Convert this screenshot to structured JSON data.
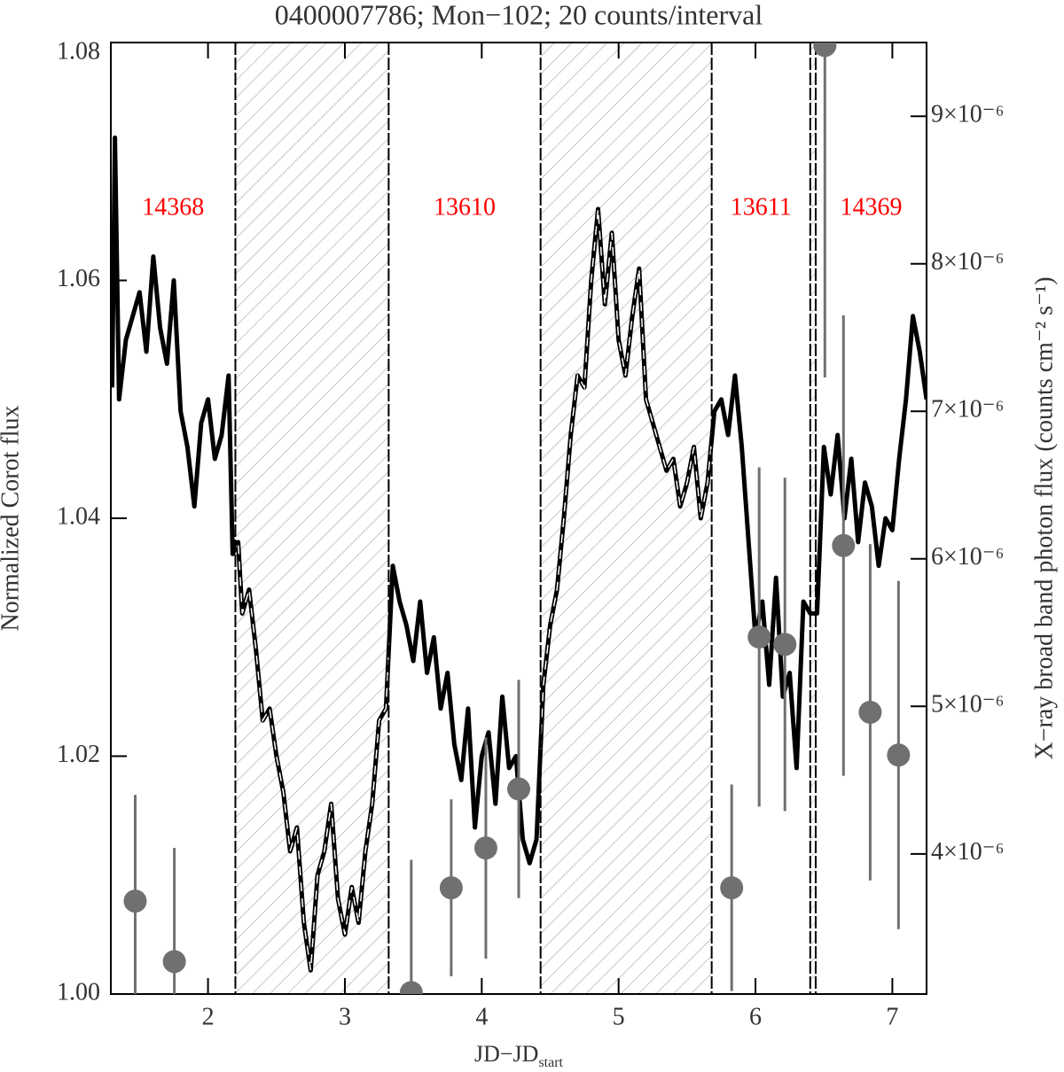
{
  "chart_data": {
    "type": "line",
    "title": "0400007786; Mon−102; 20 counts/interval",
    "xlabel": "JD−JD",
    "xlabel_sub": "start",
    "ylabel": "Normalized Corot flux",
    "y2label": "X−ray broad band photon flux (counts cm⁻² s⁻¹)",
    "xlim": [
      1.29,
      7.25
    ],
    "xticks": [
      2,
      3,
      4,
      5,
      6,
      7
    ],
    "ylim": [
      1.0,
      1.08
    ],
    "yticks": [
      {
        "value": 1.0,
        "label": "1.00"
      },
      1.02,
      1.04,
      1.06,
      1.08
    ],
    "y2lim": [
      3.05e-06,
      9.5e-06
    ],
    "y2ticks": [
      {
        "value": 4e-06,
        "label": "4×10⁻⁶"
      },
      {
        "value": 5e-06,
        "label": "5×10⁻⁶"
      },
      {
        "value": 6e-06,
        "label": "6×10⁻⁶"
      },
      {
        "value": 7e-06,
        "label": "7×10⁻⁶"
      },
      {
        "value": 8e-06,
        "label": "8×10⁻⁶"
      },
      {
        "value": 9e-06,
        "label": "9×10⁻⁶"
      }
    ],
    "observation_label_color": "#ff0000",
    "shaded_gaps": true,
    "observations": [
      {
        "label": "14368",
        "start": null,
        "end": 2.2
      },
      {
        "label": "13610",
        "start": 3.32,
        "end": 4.43
      },
      {
        "label": "13611",
        "start": 5.68,
        "end": 6.4
      },
      {
        "label": "14369",
        "start": 6.44,
        "end": null
      }
    ],
    "series": [
      {
        "type": "line",
        "color": "#000000",
        "x": [
          1.3,
          1.32,
          1.35,
          1.4,
          1.45,
          1.5,
          1.55,
          1.6,
          1.65,
          1.7,
          1.75,
          1.8,
          1.85,
          1.9,
          1.95,
          2.0,
          2.05,
          2.1,
          2.15,
          2.18,
          2.22,
          2.25,
          2.3,
          2.35,
          2.4,
          2.45,
          2.5,
          2.55,
          2.6,
          2.65,
          2.7,
          2.75,
          2.8,
          2.85,
          2.9,
          2.95,
          3.0,
          3.05,
          3.1,
          3.15,
          3.2,
          3.25,
          3.3,
          3.35,
          3.4,
          3.45,
          3.5,
          3.55,
          3.6,
          3.65,
          3.7,
          3.75,
          3.8,
          3.85,
          3.9,
          3.95,
          4.0,
          4.05,
          4.1,
          4.15,
          4.2,
          4.25,
          4.3,
          4.35,
          4.4,
          4.45,
          4.5,
          4.55,
          4.6,
          4.65,
          4.7,
          4.75,
          4.8,
          4.85,
          4.9,
          4.95,
          5.0,
          5.05,
          5.1,
          5.15,
          5.2,
          5.25,
          5.3,
          5.35,
          5.4,
          5.45,
          5.5,
          5.55,
          5.6,
          5.65,
          5.7,
          5.75,
          5.8,
          5.85,
          5.9,
          5.95,
          6.0,
          6.05,
          6.1,
          6.15,
          6.2,
          6.25,
          6.3,
          6.35,
          6.4,
          6.45,
          6.5,
          6.55,
          6.6,
          6.65,
          6.7,
          6.75,
          6.8,
          6.85,
          6.9,
          6.95,
          7.0,
          7.05,
          7.1,
          7.15,
          7.2,
          7.25
        ],
        "values": [
          1.051,
          1.072,
          1.05,
          1.055,
          1.057,
          1.059,
          1.054,
          1.062,
          1.056,
          1.053,
          1.06,
          1.049,
          1.046,
          1.041,
          1.048,
          1.05,
          1.045,
          1.047,
          1.052,
          1.037,
          1.038,
          1.032,
          1.034,
          1.029,
          1.023,
          1.024,
          1.02,
          1.017,
          1.012,
          1.014,
          1.006,
          1.002,
          1.01,
          1.012,
          1.016,
          1.008,
          1.005,
          1.009,
          1.006,
          1.012,
          1.016,
          1.023,
          1.024,
          1.036,
          1.033,
          1.031,
          1.028,
          1.033,
          1.027,
          1.03,
          1.024,
          1.027,
          1.021,
          1.018,
          1.024,
          1.014,
          1.02,
          1.022,
          1.016,
          1.025,
          1.019,
          1.02,
          1.013,
          1.011,
          1.013,
          1.026,
          1.031,
          1.034,
          1.04,
          1.047,
          1.052,
          1.051,
          1.06,
          1.066,
          1.058,
          1.064,
          1.055,
          1.052,
          1.057,
          1.061,
          1.05,
          1.048,
          1.046,
          1.044,
          1.045,
          1.041,
          1.043,
          1.046,
          1.04,
          1.043,
          1.049,
          1.05,
          1.047,
          1.052,
          1.046,
          1.038,
          1.03,
          1.033,
          1.026,
          1.035,
          1.025,
          1.027,
          1.019,
          1.033,
          1.032,
          1.032,
          1.046,
          1.042,
          1.047,
          1.04,
          1.045,
          1.038,
          1.043,
          1.041,
          1.036,
          1.04,
          1.039,
          1.045,
          1.05,
          1.057,
          1.054,
          1.05
        ]
      },
      {
        "type": "scatter",
        "axis": "y2",
        "color": "#707070",
        "x": [
          1.468,
          1.754,
          3.485,
          3.777,
          4.03,
          4.27,
          5.826,
          6.027,
          6.215,
          6.507,
          6.643,
          6.838,
          7.045
        ],
        "values": [
          3.68e-06,
          3.27e-06,
          3.06e-06,
          3.77e-06,
          4.04e-06,
          4.44e-06,
          3.77e-06,
          5.47e-06,
          5.42e-06,
          9.48e-06,
          6.09e-06,
          4.96e-06,
          4.67e-06
        ],
        "errors": [
          7.2e-07,
          7.7e-07,
          9e-07,
          6e-07,
          7.5e-07,
          7.4e-07,
          7e-07,
          1.15e-06,
          1.13e-06,
          2.25e-06,
          1.56e-06,
          1.14e-06,
          1.18e-06
        ]
      }
    ]
  }
}
